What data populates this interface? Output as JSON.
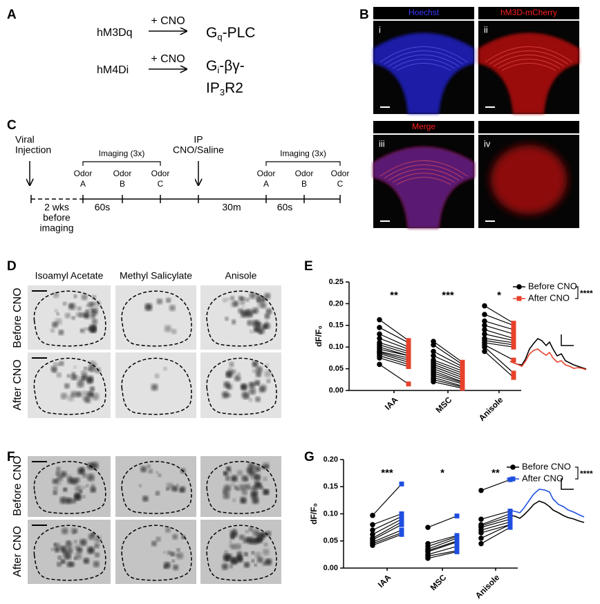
{
  "panel_labels": [
    "A",
    "B",
    "C",
    "D",
    "E",
    "F",
    "G"
  ],
  "panel_a": {
    "rows": [
      {
        "receptor": "hM3Dq",
        "treatment": "+ CNO",
        "product_lines": [
          [
            "G",
            "q",
            "-PLC"
          ]
        ]
      },
      {
        "receptor": "hM4Di",
        "treatment": "+ CNO",
        "product_lines": [
          [
            "G",
            "i",
            "-βγ-"
          ],
          [
            "IP",
            "3",
            "R2"
          ]
        ]
      }
    ]
  },
  "panel_b": {
    "images": [
      {
        "numeral": "i",
        "stain": "Hoechst",
        "color": "#3a3aff"
      },
      {
        "numeral": "ii",
        "stain": "hM3D-mCherry",
        "color": "#ff2020"
      },
      {
        "numeral": "iii",
        "stain": "Merge",
        "color": "#ff2020"
      },
      {
        "numeral": "iv"
      }
    ]
  },
  "panel_c": {
    "injection": [
      "Viral",
      "Injection"
    ],
    "delay": [
      "2 wks",
      "before",
      "imaging"
    ],
    "sessions": [
      {
        "label": "Imaging (3x)",
        "odors": [
          [
            "Odor",
            "A"
          ],
          [
            "Odor",
            "B"
          ],
          [
            "Odor",
            "C"
          ]
        ],
        "interval": "60s"
      },
      {
        "label": "Imaging (3x)",
        "odors": [
          [
            "Odor",
            "A"
          ],
          [
            "Odor",
            "B"
          ],
          [
            "Odor",
            "C"
          ]
        ],
        "interval": "60s"
      }
    ],
    "treatment": [
      "IP",
      "CNO/Saline"
    ],
    "wait": "30m"
  },
  "panel_d": {
    "odors": [
      "Isoamyl Acetate",
      "Methyl Salicylate",
      "Anisole"
    ],
    "conditions": [
      "Before CNO",
      "After CNO"
    ]
  },
  "panel_f": {
    "conditions": [
      "Before CNO",
      "After CNO"
    ]
  },
  "chart_data": [
    {
      "type": "paired_dot",
      "y_label": "dF/F₀",
      "categories": [
        "IAA",
        "MSC",
        "Anisole"
      ],
      "significance": [
        "**",
        "***",
        "*"
      ],
      "comparison": "****",
      "ylim": [
        0,
        0.25
      ],
      "yticks": [
        {
          "value": 0,
          "label": "0.00"
        },
        {
          "value": 0.05,
          "label": "0.05"
        },
        {
          "value": 0.1,
          "label": "0.10"
        },
        {
          "value": 0.15,
          "label": "0.15"
        },
        {
          "value": 0.2,
          "label": "0.20"
        },
        {
          "value": 0.25,
          "label": "0.25"
        }
      ],
      "series": [
        {
          "name": "Before CNO",
          "color": "#000000",
          "values": [
            [
              0.163,
              0.145,
              0.13,
              0.12,
              0.11,
              0.105,
              0.1,
              0.095,
              0.09,
              0.088,
              0.085,
              0.08,
              0.075,
              0.06
            ],
            [
              0.113,
              0.105,
              0.09,
              0.08,
              0.07,
              0.065,
              0.06,
              0.055,
              0.05,
              0.045,
              0.04,
              0.035,
              0.03,
              0.025,
              0.02
            ],
            [
              0.195,
              0.175,
              0.16,
              0.15,
              0.14,
              0.13,
              0.12,
              0.115,
              0.11,
              0.105,
              0.1,
              0.09
            ]
          ]
        },
        {
          "name": "After CNO",
          "color": "#e8412a",
          "values": [
            [
              0.115,
              0.11,
              0.1,
              0.095,
              0.09,
              0.085,
              0.08,
              0.08,
              0.075,
              0.07,
              0.065,
              0.06,
              0.055,
              0.015
            ],
            [
              0.065,
              0.06,
              0.055,
              0.05,
              0.045,
              0.04,
              0.035,
              0.03,
              0.025,
              0.02,
              0.018,
              0.015,
              0.01,
              0.008,
              0.005
            ],
            [
              0.155,
              0.15,
              0.14,
              0.13,
              0.12,
              0.115,
              0.11,
              0.105,
              0.1,
              0.07,
              0.04,
              0.03
            ]
          ]
        }
      ]
    },
    {
      "type": "paired_dot",
      "y_label": "dF/F₀",
      "categories": [
        "IAA",
        "MSC",
        "Anisole"
      ],
      "significance": [
        "***",
        "*",
        "**"
      ],
      "comparison": "****",
      "ylim": [
        0,
        0.2
      ],
      "yticks": [
        {
          "value": 0,
          "label": "0.00"
        },
        {
          "value": 0.05,
          "label": "0.05"
        },
        {
          "value": 0.1,
          "label": "0.10"
        },
        {
          "value": 0.15,
          "label": "0.15"
        },
        {
          "value": 0.2,
          "label": "0.20"
        }
      ],
      "series": [
        {
          "name": "Before CNO",
          "color": "#000000",
          "values": [
            [
              0.097,
              0.08,
              0.07,
              0.062,
              0.055,
              0.052,
              0.048,
              0.045,
              0.042
            ],
            [
              0.075,
              0.045,
              0.04,
              0.035,
              0.032,
              0.03,
              0.025,
              0.022,
              0.018
            ],
            [
              0.143,
              0.09,
              0.08,
              0.078,
              0.075,
              0.07,
              0.065,
              0.055,
              0.045
            ]
          ]
        },
        {
          "name": "After CNO",
          "color": "#1f4fe0",
          "values": [
            [
              0.155,
              0.1,
              0.095,
              0.09,
              0.085,
              0.08,
              0.07,
              0.065,
              0.062
            ],
            [
              0.096,
              0.06,
              0.058,
              0.055,
              0.05,
              0.048,
              0.04,
              0.032,
              0.03
            ],
            [
              0.163,
              0.105,
              0.1,
              0.095,
              0.09,
              0.085,
              0.08,
              0.08,
              0.075
            ]
          ]
        }
      ]
    }
  ]
}
